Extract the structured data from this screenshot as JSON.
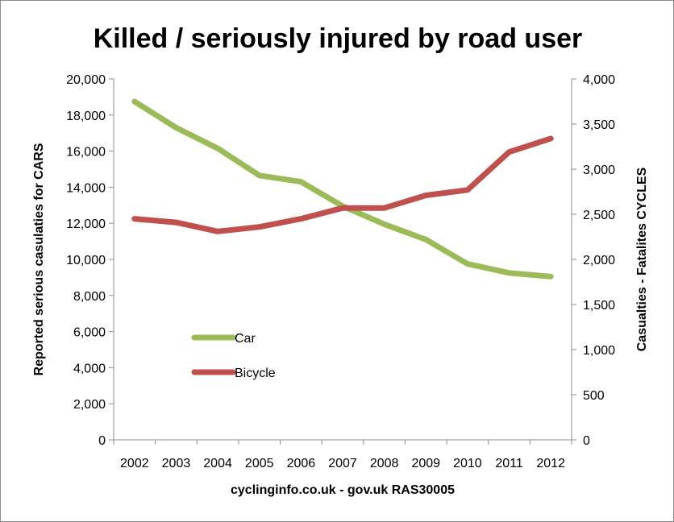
{
  "chart_data": {
    "type": "line",
    "title": "Killed / seriously injured by road user",
    "xlabel": "cyclinginfo.co.uk - gov.uk RAS30005",
    "ylabel_left": "Reported serious casulaties for CARS",
    "ylabel_right": "Casualties - Fatalites CYCLES",
    "categories": [
      "2002",
      "2003",
      "2004",
      "2005",
      "2006",
      "2007",
      "2008",
      "2009",
      "2010",
      "2011",
      "2012"
    ],
    "ylim_left": [
      0,
      20000
    ],
    "ylim_right": [
      0,
      4000
    ],
    "yticks_left": [
      "0",
      "2,000",
      "4,000",
      "6,000",
      "8,000",
      "10,000",
      "12,000",
      "14,000",
      "16,000",
      "18,000",
      "20,000"
    ],
    "yticks_right": [
      "0",
      "500",
      "1,000",
      "1,500",
      "2,000",
      "2,500",
      "3,000",
      "3,500",
      "4,000"
    ],
    "grid": false,
    "legend_position": "inside-left",
    "series": [
      {
        "name": "Car",
        "axis": "left",
        "color": "#9bbb59",
        "values": [
          18750,
          17300,
          16150,
          14650,
          14300,
          12950,
          11950,
          11100,
          9750,
          9250,
          9050
        ]
      },
      {
        "name": "Bicycle",
        "axis": "right",
        "color": "#c0504d",
        "values": [
          2450,
          2410,
          2310,
          2360,
          2450,
          2570,
          2570,
          2710,
          2770,
          3190,
          3340
        ]
      }
    ]
  }
}
